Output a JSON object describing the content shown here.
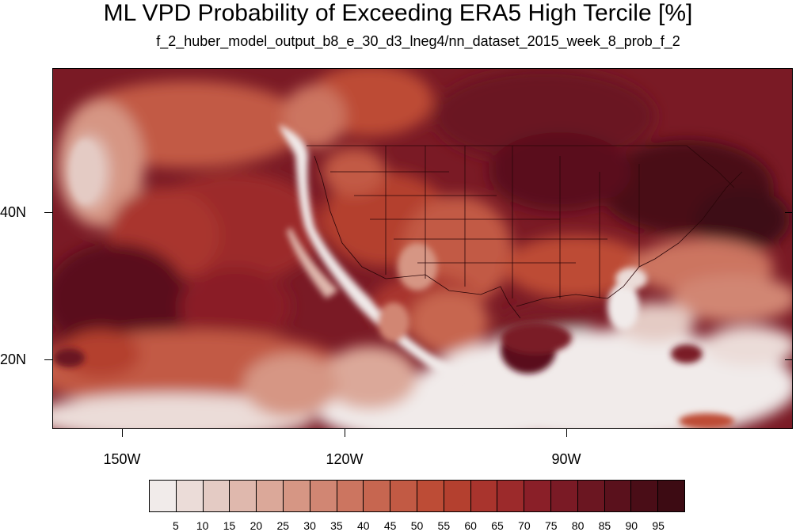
{
  "title": "ML VPD Probability of Exceeding ERA5 High Tercile [%]",
  "subtitle": "f_2_huber_model_output_b8_e_30_d3_lneg4/nn_dataset_2015_week_8_prob_f_2",
  "lon_labels": [
    "150W",
    "120W",
    "90W"
  ],
  "lat_labels": [
    "40N",
    "20N"
  ],
  "colorbar": {
    "labels": [
      "5",
      "10",
      "15",
      "20",
      "25",
      "30",
      "35",
      "40",
      "45",
      "50",
      "55",
      "60",
      "65",
      "70",
      "75",
      "80",
      "85",
      "90",
      "95"
    ],
    "colors": [
      "#f1ebea",
      "#ebdcd8",
      "#e4cbc4",
      "#dfb8ad",
      "#dba899",
      "#d69684",
      "#d18673",
      "#cc7560",
      "#c76650",
      "#c25a44",
      "#bd4c36",
      "#b4402f",
      "#a9342d",
      "#9c2a2b",
      "#8a1f28",
      "#7a1a25",
      "#6b1621",
      "#5a111c",
      "#4a0d17",
      "#3d0b13"
    ]
  }
}
